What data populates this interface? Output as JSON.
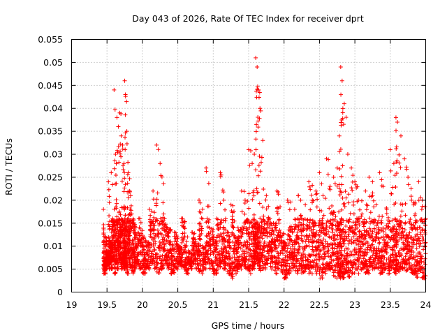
{
  "chart_data": {
    "type": "scatter",
    "title": "Day 043 of 2026, Rate Of TEC Index for receiver dprt",
    "xlabel": "GPS time / hours",
    "ylabel": "ROTI / TECUs",
    "xlim": [
      19,
      24
    ],
    "ylim": [
      0,
      0.055
    ],
    "x_ticks": [
      "19",
      "19.5",
      "20",
      "20.5",
      "21",
      "21.5",
      "22",
      "22.5",
      "23",
      "23.5",
      "24"
    ],
    "y_ticks": [
      "0",
      "0.005",
      "0.01",
      "0.015",
      "0.02",
      "0.025",
      "0.03",
      "0.035",
      "0.04",
      "0.045",
      "0.05",
      "0.055"
    ],
    "grid": true,
    "marker": "+",
    "color": "#ff0000",
    "series": [
      {
        "x": [
          19.45,
          19.46,
          19.48,
          19.5,
          19.52,
          19.54,
          19.56,
          19.58,
          19.6,
          19.62,
          19.64,
          19.66,
          19.68,
          19.7,
          19.72,
          19.74,
          19.75,
          19.76,
          19.78,
          19.8,
          19.82,
          19.85,
          19.88,
          19.9,
          19.95,
          20.0,
          20.05,
          20.1,
          20.15,
          20.2,
          20.25,
          20.3,
          20.35,
          20.4,
          20.45,
          20.5,
          20.55,
          20.6,
          20.65,
          20.7,
          20.75,
          20.8,
          20.85,
          20.9,
          20.95,
          21.0,
          21.05,
          21.1,
          21.15,
          21.2,
          21.25,
          21.3,
          21.35,
          21.4,
          21.45,
          21.5,
          21.55,
          21.58,
          21.6,
          21.62,
          21.64,
          21.66,
          21.7,
          21.75,
          21.8,
          21.85,
          21.9,
          21.95,
          22.0,
          22.05,
          22.1,
          22.15,
          22.2,
          22.25,
          22.3,
          22.35,
          22.4,
          22.45,
          22.5,
          22.55,
          22.6,
          22.65,
          22.7,
          22.75,
          22.78,
          22.8,
          22.82,
          22.85,
          22.9,
          22.95,
          23.0,
          23.05,
          23.1,
          23.15,
          23.2,
          23.25,
          23.3,
          23.35,
          23.4,
          23.45,
          23.5,
          23.55,
          23.58,
          23.6,
          23.65,
          23.7,
          23.75,
          23.8,
          23.85,
          23.9,
          23.95,
          24.0
        ],
        "y": [
          0.018,
          0.007,
          0.012,
          0.009,
          0.024,
          0.011,
          0.026,
          0.016,
          0.044,
          0.03,
          0.038,
          0.036,
          0.039,
          0.034,
          0.032,
          0.028,
          0.046,
          0.043,
          0.035,
          0.026,
          0.022,
          0.017,
          0.015,
          0.013,
          0.016,
          0.012,
          0.011,
          0.018,
          0.022,
          0.032,
          0.028,
          0.017,
          0.014,
          0.011,
          0.013,
          0.01,
          0.016,
          0.012,
          0.009,
          0.013,
          0.011,
          0.02,
          0.01,
          0.027,
          0.014,
          0.012,
          0.016,
          0.026,
          0.02,
          0.013,
          0.019,
          0.012,
          0.014,
          0.022,
          0.02,
          0.031,
          0.028,
          0.03,
          0.051,
          0.049,
          0.044,
          0.04,
          0.033,
          0.021,
          0.016,
          0.015,
          0.022,
          0.013,
          0.011,
          0.02,
          0.014,
          0.018,
          0.021,
          0.016,
          0.019,
          0.024,
          0.02,
          0.022,
          0.026,
          0.021,
          0.029,
          0.023,
          0.025,
          0.027,
          0.034,
          0.049,
          0.046,
          0.041,
          0.03,
          0.027,
          0.024,
          0.02,
          0.017,
          0.022,
          0.025,
          0.021,
          0.019,
          0.026,
          0.023,
          0.018,
          0.031,
          0.028,
          0.038,
          0.037,
          0.034,
          0.029,
          0.025,
          0.02,
          0.017,
          0.024,
          0.02,
          0.016
        ],
        "y_low": [
          0.004,
          0.004,
          0.005,
          0.006,
          0.005,
          0.006,
          0.005,
          0.007,
          0.004,
          0.006,
          0.005,
          0.007,
          0.006,
          0.005,
          0.006,
          0.005,
          0.006,
          0.005,
          0.004,
          0.006,
          0.005,
          0.004,
          0.005,
          0.006,
          0.005,
          0.004,
          0.005,
          0.006,
          0.005,
          0.004,
          0.005,
          0.006,
          0.005,
          0.004,
          0.005,
          0.006,
          0.005,
          0.004,
          0.005,
          0.006,
          0.005,
          0.004,
          0.005,
          0.006,
          0.005,
          0.004,
          0.005,
          0.006,
          0.005,
          0.004,
          0.003,
          0.004,
          0.005,
          0.006,
          0.005,
          0.004,
          0.005,
          0.006,
          0.007,
          0.006,
          0.005,
          0.004,
          0.005,
          0.006,
          0.005,
          0.004,
          0.005,
          0.004,
          0.003,
          0.004,
          0.005,
          0.004,
          0.005,
          0.004,
          0.005,
          0.004,
          0.005,
          0.004,
          0.003,
          0.004,
          0.005,
          0.004,
          0.003,
          0.004,
          0.003,
          0.004,
          0.003,
          0.004,
          0.003,
          0.004,
          0.005,
          0.004,
          0.005,
          0.004,
          0.005,
          0.004,
          0.005,
          0.004,
          0.005,
          0.004,
          0.005,
          0.004,
          0.005,
          0.004,
          0.005,
          0.004,
          0.005,
          0.004,
          0.003,
          0.004,
          0.003,
          0.004
        ]
      }
    ]
  }
}
